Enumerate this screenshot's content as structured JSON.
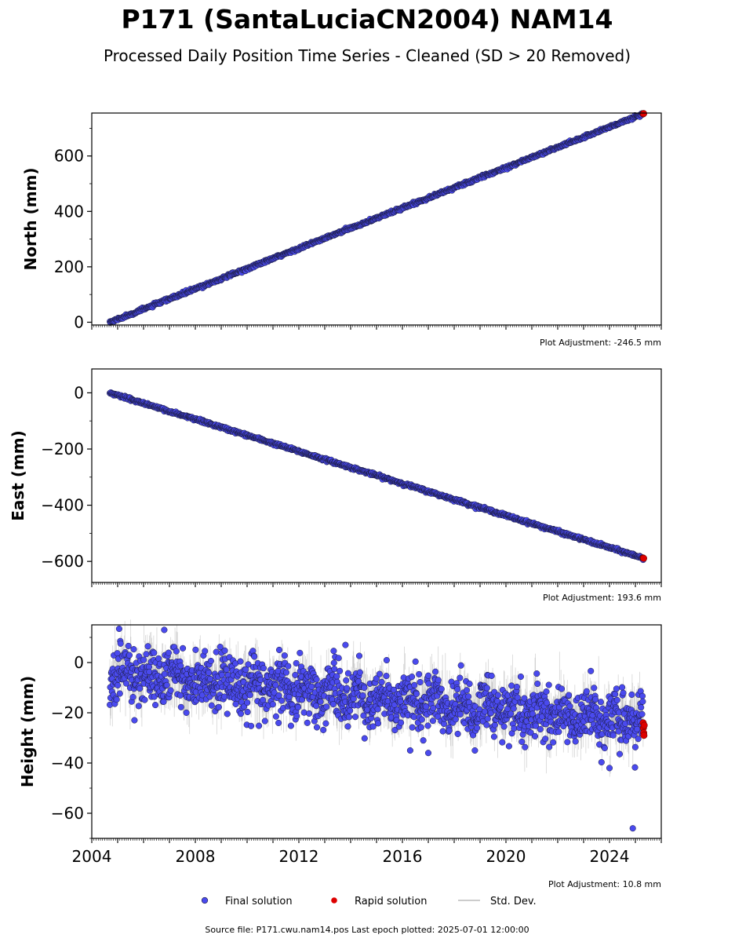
{
  "title": "P171 (SantaLuciaCN2004) NAM14",
  "subtitle": "Processed Daily Position Time Series - Cleaned (SD > 20 Removed)",
  "source_note": "Source file: P171.cwu.nam14.pos  Last epoch plotted: 2025-07-01 12:00:00",
  "legend": {
    "final_label": "Final solution",
    "rapid_label": "Rapid solution",
    "std_label": "Std. Dev."
  },
  "colors": {
    "final_fill": "#4a4aee",
    "final_edge": "#1a1a3a",
    "rapid": "#dd0000",
    "std": "#888888"
  },
  "chart_data": [
    {
      "type": "scatter",
      "ylabel": "North (mm)",
      "adjustment": "Plot Adjustment: -246.5 mm",
      "xlim": [
        2004.0,
        2026.0
      ],
      "ylim": [
        -10,
        755
      ],
      "yticks": [
        0,
        200,
        400,
        600
      ],
      "ytick_labels": [
        "0",
        "200",
        "400",
        "600"
      ],
      "trend": {
        "start": [
          2004.7,
          0
        ],
        "end": [
          2025.3,
          752
        ]
      },
      "rapid_points": [
        [
          2025.3,
          752
        ],
        [
          2025.32,
          753
        ]
      ],
      "series": [
        {
          "name": "Final solution"
        },
        {
          "name": "Rapid solution"
        }
      ]
    },
    {
      "type": "scatter",
      "ylabel": "East (mm)",
      "adjustment": "Plot Adjustment: 193.6 mm",
      "xlim": [
        2004.0,
        2026.0
      ],
      "ylim": [
        -675,
        85
      ],
      "yticks": [
        -600,
        -400,
        -200,
        0
      ],
      "ytick_labels": [
        "−600",
        "−400",
        "−200",
        "0"
      ],
      "trend": {
        "start": [
          2004.7,
          0
        ],
        "end": [
          2025.3,
          -588
        ]
      },
      "rapid_points": [
        [
          2025.3,
          -588
        ],
        [
          2025.32,
          -589
        ]
      ],
      "series": [
        {
          "name": "Final solution"
        },
        {
          "name": "Rapid solution"
        }
      ]
    },
    {
      "type": "scatter",
      "ylabel": "Height (mm)",
      "adjustment": "Plot Adjustment: 10.8 mm",
      "xlim": [
        2004.0,
        2026.0
      ],
      "ylim": [
        -70,
        15
      ],
      "yticks": [
        -60,
        -40,
        -20,
        0
      ],
      "ytick_labels": [
        "−60",
        "−40",
        "−20",
        "0"
      ],
      "xticks": [
        2004,
        2008,
        2012,
        2016,
        2020,
        2024
      ],
      "xtick_labels": [
        "2004",
        "2008",
        "2012",
        "2016",
        "2020",
        "2024"
      ],
      "trend": {
        "start": [
          2004.7,
          -4
        ],
        "end": [
          2025.3,
          -24
        ]
      },
      "outliers": [
        [
          2024.9,
          -66
        ],
        [
          2024.0,
          -42
        ],
        [
          2006.8,
          13
        ],
        [
          2013.8,
          7
        ],
        [
          2016.3,
          -35
        ],
        [
          2017.0,
          -36
        ],
        [
          2018.8,
          -35
        ]
      ],
      "rapid_points": [
        [
          2025.3,
          -24
        ],
        [
          2025.31,
          -26
        ],
        [
          2025.32,
          -28
        ],
        [
          2025.33,
          -29
        ],
        [
          2025.34,
          -25
        ]
      ],
      "series": [
        {
          "name": "Final solution"
        },
        {
          "name": "Rapid solution"
        },
        {
          "name": "Std. Dev."
        }
      ]
    }
  ]
}
